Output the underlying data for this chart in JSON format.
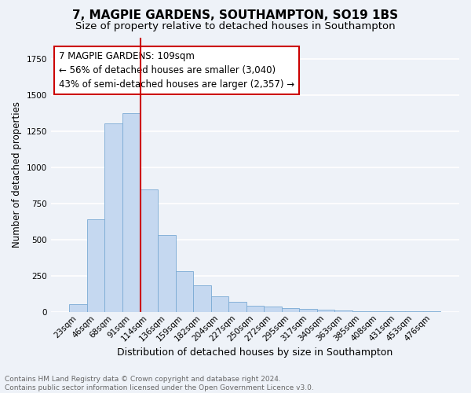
{
  "title": "7, MAGPIE GARDENS, SOUTHAMPTON, SO19 1BS",
  "subtitle": "Size of property relative to detached houses in Southampton",
  "xlabel": "Distribution of detached houses by size in Southampton",
  "ylabel": "Number of detached properties",
  "categories": [
    "23sqm",
    "46sqm",
    "68sqm",
    "91sqm",
    "114sqm",
    "136sqm",
    "159sqm",
    "182sqm",
    "204sqm",
    "227sqm",
    "250sqm",
    "272sqm",
    "295sqm",
    "317sqm",
    "340sqm",
    "363sqm",
    "385sqm",
    "408sqm",
    "431sqm",
    "453sqm",
    "476sqm"
  ],
  "values": [
    55,
    640,
    1305,
    1375,
    848,
    530,
    280,
    183,
    108,
    70,
    40,
    35,
    25,
    20,
    15,
    12,
    5,
    5,
    5,
    3,
    3
  ],
  "bar_color": "#c5d8f0",
  "bar_edge_color": "#7aaad4",
  "property_line_color": "#cc0000",
  "property_line_index": 4,
  "annotation_line1": "7 MAGPIE GARDENS: 109sqm",
  "annotation_line2": "← 56% of detached houses are smaller (3,040)",
  "annotation_line3": "43% of semi-detached houses are larger (2,357) →",
  "annotation_box_color": "#ffffff",
  "annotation_box_edge": "#cc0000",
  "ylim": [
    0,
    1900
  ],
  "footnote": "Contains HM Land Registry data © Crown copyright and database right 2024.\nContains public sector information licensed under the Open Government Licence v3.0.",
  "bg_color": "#eef2f8",
  "grid_color": "#ffffff",
  "title_fontsize": 11,
  "subtitle_fontsize": 9.5,
  "xlabel_fontsize": 9,
  "ylabel_fontsize": 8.5,
  "tick_fontsize": 7.5,
  "footnote_fontsize": 6.5,
  "annot_fontsize": 8.5
}
